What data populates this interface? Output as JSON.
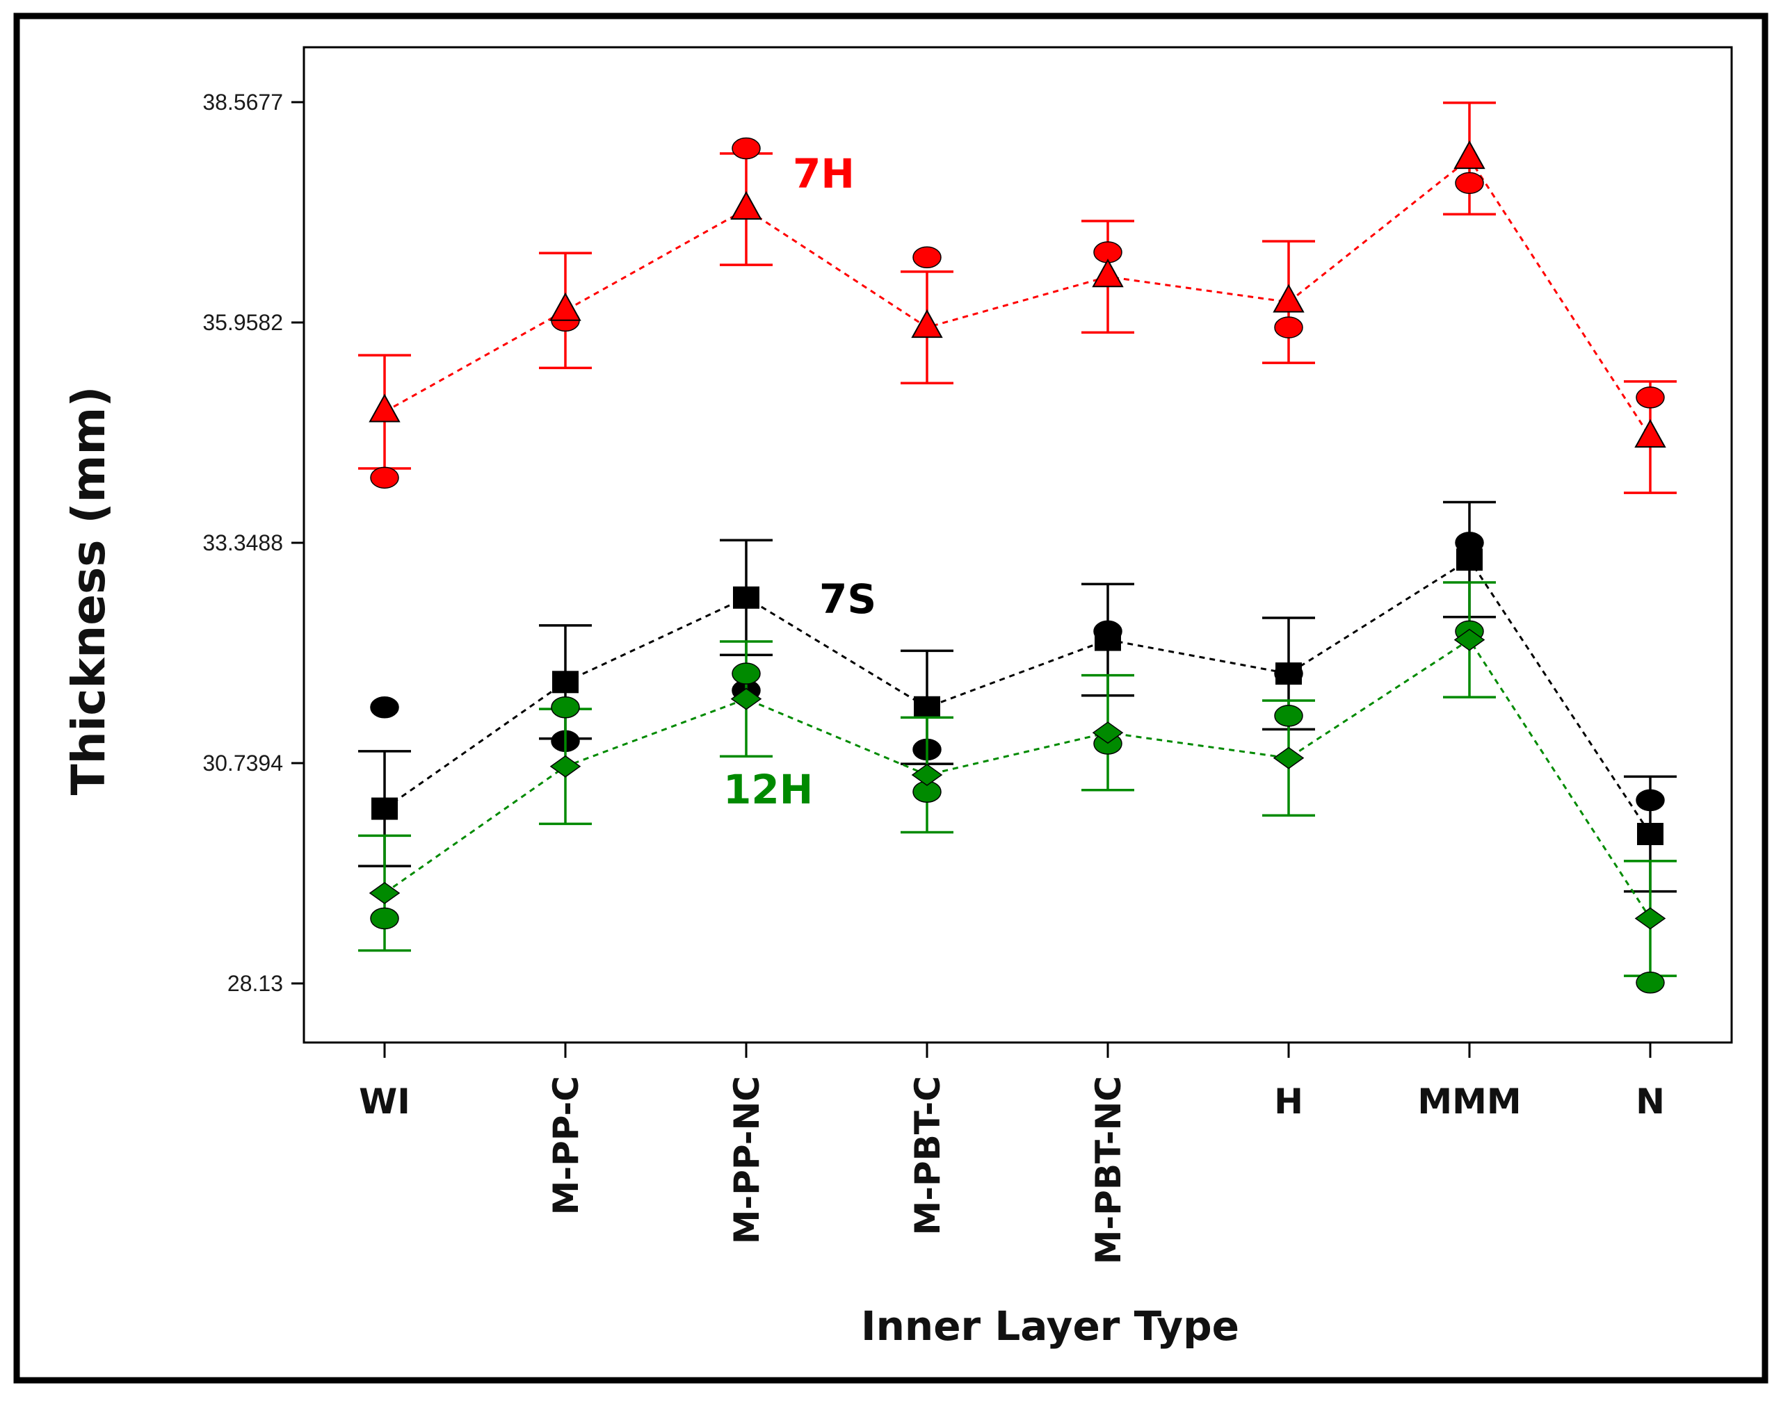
{
  "chart_data": {
    "type": "line",
    "title": "",
    "xlabel": "Inner Layer Type",
    "ylabel": "Thickness (mm)",
    "ylim": [
      27.4,
      39.3
    ],
    "yticks": [
      {
        "value": 28.13,
        "label": "28.13"
      },
      {
        "value": 30.7394,
        "label": "30.7394"
      },
      {
        "value": 33.3488,
        "label": "33.3488"
      },
      {
        "value": 35.9582,
        "label": "35.9582"
      },
      {
        "value": 38.5677,
        "label": "38.5677"
      }
    ],
    "categories": [
      "WI",
      "M-PP-C",
      "M-PP-NC",
      "M-PBT-C",
      "M-PBT-NC",
      "H",
      "MMM",
      "N"
    ],
    "series": [
      {
        "name": "7H",
        "color": "#ff0000",
        "marker": "triangle",
        "dot_marker": "circle",
        "predicted": [
          34.9,
          36.1,
          37.3,
          35.9,
          36.5,
          36.2,
          37.9,
          34.6
        ],
        "error": [
          0.67,
          0.68,
          0.66,
          0.66,
          0.66,
          0.72,
          0.66,
          0.66
        ],
        "observed": [
          34.12,
          35.98,
          38.02,
          36.73,
          36.79,
          35.9,
          37.61,
          35.07
        ]
      },
      {
        "name": "7S",
        "color": "#000000",
        "marker": "square",
        "dot_marker": "circle",
        "predicted": [
          30.2,
          31.7,
          32.7,
          31.4,
          32.2,
          31.8,
          33.15,
          29.9
        ],
        "error": [
          0.68,
          0.67,
          0.68,
          0.67,
          0.66,
          0.66,
          0.68,
          0.68
        ],
        "observed": [
          31.4,
          31.0,
          31.6,
          30.9,
          32.3,
          31.8,
          33.35,
          30.3
        ]
      },
      {
        "name": "12H",
        "color": "#008a00",
        "marker": "diamond",
        "dot_marker": "circle",
        "predicted": [
          29.2,
          30.7,
          31.5,
          30.6,
          31.1,
          30.8,
          32.2,
          28.9
        ],
        "error": [
          0.68,
          0.68,
          0.68,
          0.68,
          0.68,
          0.68,
          0.68,
          0.68
        ],
        "observed": [
          28.9,
          31.4,
          31.8,
          30.4,
          30.97,
          31.3,
          32.3,
          28.14
        ]
      }
    ],
    "annotations": [
      {
        "text": "7H",
        "series": "7H"
      },
      {
        "text": "7S",
        "series": "7S"
      },
      {
        "text": "12H",
        "series": "12H"
      }
    ]
  }
}
